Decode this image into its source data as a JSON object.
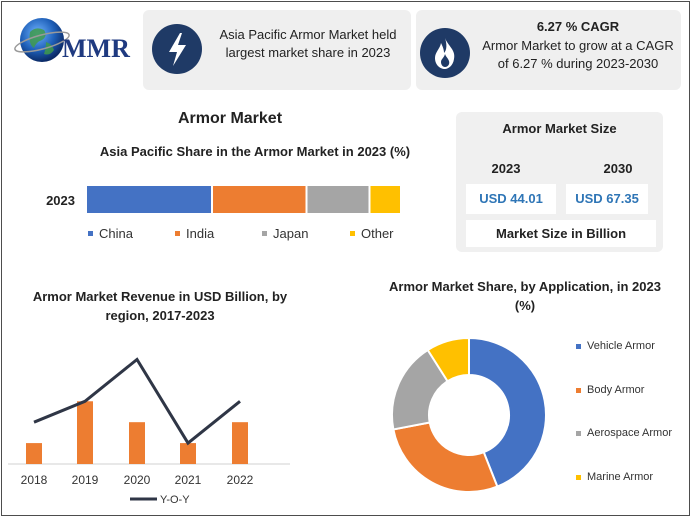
{
  "logo": {
    "text": "MMR"
  },
  "card1": {
    "text": "Asia Pacific Armor Market held largest market share in 2023",
    "icon": "lightning-icon"
  },
  "card2": {
    "title": "6.27 % CAGR",
    "text": "Armor Market to grow at a CAGR of 6.27 % during 2023-2030",
    "icon": "flame-icon"
  },
  "main_title": "Armor Market",
  "market_size": {
    "title": "Armor Market Size",
    "years": [
      "2023",
      "2030"
    ],
    "values": [
      "USD 44.01",
      "USD 67.35"
    ],
    "footer": "Market Size in Billion"
  },
  "colors": {
    "blue": "#4472c4",
    "orange": "#ed7d31",
    "gray": "#a5a5a5",
    "yellow": "#ffc000",
    "navy": "#1f3a66",
    "line": "#2f3646"
  },
  "chart_data": [
    {
      "type": "bar",
      "orientation": "horizontal-stacked",
      "title": "Asia Pacific Share in the Armor Market in 2023 (%)",
      "categories": [
        "2023"
      ],
      "series": [
        {
          "name": "China",
          "values": [
            40
          ]
        },
        {
          "name": "India",
          "values": [
            30
          ]
        },
        {
          "name": "Japan",
          "values": [
            20
          ]
        },
        {
          "name": "Other",
          "values": [
            10
          ]
        }
      ],
      "legend": "bottom"
    },
    {
      "type": "bar",
      "title": "Armor Market Revenue in USD Billion, by region, 2017-2023",
      "categories": [
        "2018",
        "2019",
        "2020",
        "2021",
        "2022"
      ],
      "series": [
        {
          "name": "",
          "type": "bar",
          "values": [
            1,
            3,
            2,
            1,
            2
          ]
        },
        {
          "name": "Y-O-Y",
          "type": "line",
          "values": [
            2,
            3,
            5,
            1,
            3
          ]
        }
      ],
      "ylim": [
        0,
        5.5
      ],
      "legend": "bottom"
    },
    {
      "type": "pie",
      "style": "donut",
      "title": "Armor Market Share, by Application, in 2023 (%)",
      "categories": [
        "Vehicle Armor",
        "Body Armor",
        "Aerospace Armor",
        "Marine Armor"
      ],
      "values": [
        44,
        28,
        19,
        9
      ],
      "legend": "right"
    }
  ]
}
